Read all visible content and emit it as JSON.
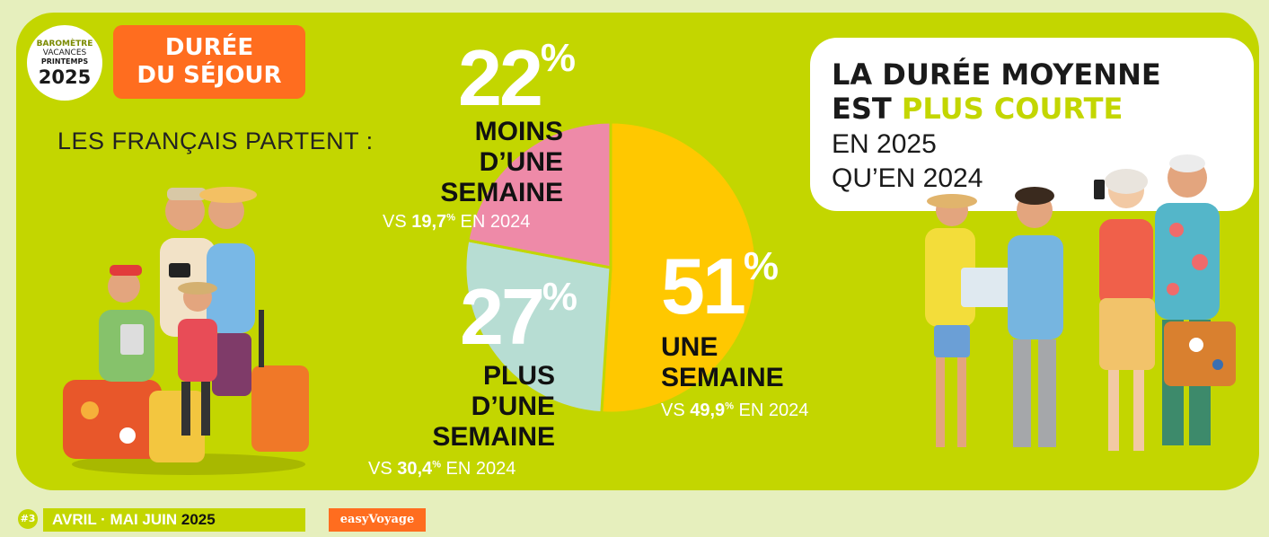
{
  "badge": {
    "line1": "BAROMÈTRE",
    "line2": "VACANCES",
    "line3": "PRINTEMPS",
    "year": "2025"
  },
  "title": {
    "line1": "DURÉE",
    "line2": "DU SÉJOUR"
  },
  "intro": "LES FRANÇAIS PARTENT :",
  "callout": {
    "line1": "LA DURÉE MOYENNE",
    "line2_a": "EST ",
    "line2_b": "PLUS COURTE",
    "line3": "EN 2025",
    "line4": "QU’EN 2024"
  },
  "colors": {
    "background": "#c3d600",
    "accent": "#ff6d1f",
    "pink": "#ee8aa8",
    "mint": "#b7ddd3",
    "yellow": "#ffc800"
  },
  "chart_data": {
    "type": "pie",
    "slices": [
      {
        "label_lines": [
          "MOINS",
          "D’UNE",
          "SEMAINE"
        ],
        "value": 22,
        "value_text": "22",
        "previous": "19,7",
        "color": "#ee8aa8"
      },
      {
        "label_lines": [
          "PLUS",
          "D’UNE",
          "SEMAINE"
        ],
        "value": 27,
        "value_text": "27",
        "previous": "30,4",
        "color": "#b7ddd3"
      },
      {
        "label_lines": [
          "UNE",
          "SEMAINE"
        ],
        "value": 51,
        "value_text": "51",
        "previous": "49,9",
        "color": "#ffc800"
      }
    ],
    "percent_sign": "%",
    "vs_prefix": "VS ",
    "vs_suffix": " EN 2024"
  },
  "footer": {
    "number": "#3",
    "period": "AVRIL · MAI JUIN ",
    "year": "2025",
    "brand": "easyVoyage"
  }
}
